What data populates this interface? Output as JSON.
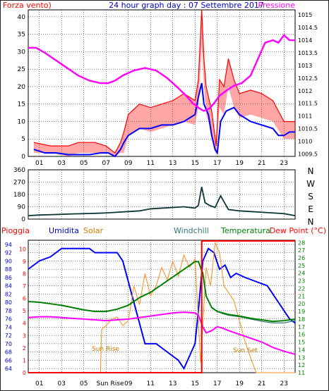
{
  "chart_data": [
    {
      "type": "line",
      "title": "24 hour graph day : 07 Settembre 2017",
      "left_label": "Forza vento)",
      "right_label": "Pressione",
      "xticks": [
        "01",
        "03",
        "05",
        "07",
        "09",
        "11",
        "13",
        "15",
        "17",
        "19",
        "21",
        "23"
      ],
      "yticks_left": [
        "0",
        "5",
        "10",
        "15",
        "20",
        "25",
        "30",
        "35",
        "40"
      ],
      "yticks_right": [
        "1009.5",
        "1010",
        "1010.5",
        "1011",
        "1011.5",
        "1012",
        "1012.5",
        "1013",
        "1013.5",
        "1014",
        "1014.5",
        "1015"
      ],
      "ylim_left": [
        0,
        42
      ],
      "ylim_right": [
        1009.4,
        1015.2
      ],
      "xlim": [
        0,
        24
      ],
      "series": [
        {
          "name": "Forza vento",
          "color": "#ff0000",
          "axis": "left",
          "x": [
            0.5,
            2,
            3.6,
            4.5,
            6,
            7,
            7.8,
            8.3,
            8.6,
            9,
            10,
            11,
            12,
            13,
            14,
            15,
            15.3,
            15.6,
            15.8,
            16,
            16.5,
            16.9,
            17.2,
            17.6,
            18,
            18.5,
            19,
            20,
            21,
            22,
            23,
            24
          ],
          "y": [
            4,
            3,
            3,
            4,
            4,
            3,
            1,
            4,
            7,
            12,
            15,
            14,
            15,
            16,
            18,
            16,
            22,
            42,
            28,
            20,
            13,
            3,
            22,
            20,
            28,
            22,
            18,
            19,
            18,
            16,
            10,
            10
          ],
          "band": [
            3,
            2,
            3,
            3,
            3,
            2,
            2,
            3,
            6,
            6,
            7,
            7,
            7,
            7,
            8,
            7,
            8,
            10,
            8,
            8,
            6,
            3,
            8,
            8,
            8,
            8,
            7,
            7,
            7,
            6,
            5,
            5
          ]
        },
        {
          "name": "Forza vento media",
          "color": "#0000ff",
          "axis": "left",
          "x": [
            0.5,
            1.5,
            2.5,
            3.6,
            4.5,
            5.5,
            6.5,
            7.2,
            7.8,
            8.3,
            8.6,
            9,
            9.5,
            10,
            11,
            12,
            13,
            14,
            14.5,
            15,
            15.3,
            15.6,
            15.8,
            16.2,
            16.5,
            16.8,
            17,
            17.3,
            17.8,
            18.5,
            19,
            20,
            21,
            22,
            22.5,
            23,
            23.5,
            24
          ],
          "y": [
            2,
            1,
            1,
            0.5,
            0.5,
            0.5,
            1,
            1,
            0,
            2,
            4,
            6,
            7,
            8,
            8,
            9,
            9,
            10,
            11,
            12,
            17,
            21,
            15,
            12,
            6,
            2,
            1,
            10,
            13,
            14,
            12,
            10,
            9,
            8,
            6,
            6,
            7,
            7
          ]
        },
        {
          "name": "Pressione",
          "color": "#ff00ff",
          "axis": "right",
          "x": [
            0,
            0.7,
            1.5,
            2.5,
            3.5,
            4.5,
            5.5,
            6.5,
            7.2,
            7.8,
            8.5,
            9.5,
            10.5,
            11.5,
            12.5,
            13.5,
            14.2,
            14.8,
            15.4,
            15.8,
            16.3,
            16.7,
            17.2,
            17.8,
            18.5,
            19.2,
            20,
            20.8,
            21.3,
            22,
            22.5,
            23,
            23.5,
            24
          ],
          "y": [
            1013.7,
            1013.7,
            1013.5,
            1013.2,
            1012.9,
            1012.6,
            1012.4,
            1012.3,
            1012.3,
            1012.4,
            1012.6,
            1012.8,
            1012.9,
            1012.8,
            1012.5,
            1012.1,
            1011.8,
            1011.5,
            1011.3,
            1011.2,
            1011.3,
            1011.5,
            1011.8,
            1012.0,
            1012.2,
            1012.3,
            1012.6,
            1013.4,
            1013.9,
            1014.0,
            1013.9,
            1014.2,
            1014.0,
            1014.0
          ]
        }
      ]
    },
    {
      "type": "line",
      "title": "",
      "yticks": [
        "0",
        "90",
        "180",
        "270",
        "360"
      ],
      "ylim": [
        0,
        360
      ],
      "compass": [
        "N",
        "W",
        "S",
        "E",
        "N"
      ],
      "series": [
        {
          "name": "Direzione vento",
          "color": "#0d3535",
          "x": [
            0,
            1,
            2,
            3,
            4,
            5,
            6,
            7,
            8,
            9,
            10,
            11,
            12,
            13,
            14,
            15,
            15.3,
            15.6,
            15.9,
            16.3,
            16.8,
            17.3,
            18,
            19,
            20,
            21,
            22,
            23,
            24
          ],
          "y": [
            25,
            30,
            32,
            35,
            38,
            40,
            42,
            45,
            50,
            55,
            60,
            75,
            80,
            85,
            90,
            80,
            100,
            235,
            120,
            100,
            85,
            170,
            70,
            60,
            55,
            50,
            45,
            40,
            25
          ]
        }
      ]
    },
    {
      "type": "line",
      "title": "",
      "labels": [
        "Pioggia",
        "Umidita",
        "Solar",
        "Windchill",
        "Temperatura",
        "Dew Point (°C)"
      ],
      "xticks": [
        "01",
        "03",
        "05",
        "07",
        "09",
        "11",
        "13",
        "15",
        "17",
        "19",
        "21",
        "23"
      ],
      "yticks_left1": [
        "64",
        "66",
        "68",
        "70",
        "72",
        "74",
        "76",
        "78",
        "80",
        "82",
        "84",
        "86",
        "88",
        "90",
        "92",
        "94"
      ],
      "yticks_left2": [
        "0",
        "1",
        "2",
        "3",
        "4",
        "5",
        "6",
        "7",
        "8",
        "9",
        "10"
      ],
      "yticks_right": [
        "11",
        "12",
        "13",
        "14",
        "15",
        "16",
        "17",
        "18",
        "19",
        "20",
        "21",
        "22",
        "23",
        "24",
        "25",
        "26",
        "27",
        "28"
      ],
      "annotations": [
        "Sun Rise",
        "Sun Set",
        "Sun Rise"
      ],
      "ylim_humidity": [
        63,
        95
      ],
      "ylim_rain": [
        0,
        10.7
      ],
      "ylim_temp": [
        11,
        28.3
      ],
      "series": [
        {
          "name": "Umidita",
          "color": "#0000ff",
          "axis": "humidity",
          "x": [
            0,
            0.5,
            1,
            2,
            3,
            4,
            5,
            5.5,
            6,
            7,
            7.5,
            8,
            8.5,
            9,
            9.5,
            10,
            10.5,
            11,
            11.5,
            12,
            12.5,
            13,
            13.5,
            14,
            14.5,
            15,
            15.3,
            15.7,
            16.2,
            16.7,
            17.2,
            17.7,
            18.2,
            18.7,
            19.5,
            20.5,
            21.5,
            22.5,
            23,
            23.5,
            24
          ],
          "y": [
            88,
            89,
            90,
            91,
            93,
            93,
            93,
            93,
            92,
            92,
            92,
            92,
            90,
            85,
            80,
            75,
            70,
            70,
            70,
            69,
            68,
            67,
            66,
            64,
            67,
            70,
            78,
            90,
            93,
            92,
            88,
            89,
            86,
            87,
            86,
            85,
            84,
            80,
            78,
            76,
            75
          ]
        },
        {
          "name": "Solar",
          "color": "#ff8c1a",
          "axis": "rain",
          "x": [
            0,
            6.5,
            6.6,
            7,
            7.5,
            8,
            8.5,
            9,
            9.5,
            10,
            10.5,
            11,
            11.5,
            12,
            12.5,
            13,
            13.5,
            14,
            14.5,
            15,
            15.5,
            16,
            16.4,
            16.8,
            17.2,
            17.6,
            18,
            18.5,
            19,
            19.5,
            20,
            20.5,
            24
          ],
          "y": [
            0,
            0,
            3.5,
            3.8,
            4.3,
            4.5,
            3.8,
            4.2,
            7,
            5.5,
            8,
            6.2,
            7,
            8.5,
            7.5,
            9,
            7.8,
            9.5,
            8.5,
            9.2,
            0.8,
            8.5,
            7,
            10.5,
            9.7,
            7,
            6.5,
            5.8,
            4.2,
            2.5,
            1.2,
            0,
            0
          ]
        },
        {
          "name": "Windchill",
          "color": "#337777",
          "axis": "temp",
          "x": [
            0,
            1,
            2,
            3,
            4,
            5,
            6,
            7,
            8,
            9,
            10,
            11,
            12,
            13,
            14,
            15,
            15.3,
            15.7,
            16,
            16.5,
            17,
            17.5,
            18,
            19,
            20,
            21,
            22,
            23,
            24
          ],
          "y": [
            20.3,
            20.2,
            20.0,
            19.8,
            19.5,
            19.2,
            19.0,
            19.0,
            19.3,
            19.8,
            20.8,
            21.5,
            22.5,
            23.5,
            24.5,
            25.5,
            25.5,
            24.0,
            21.0,
            19.5,
            19.0,
            18.7,
            18.5,
            18.3,
            18.0,
            17.7,
            17.5,
            17.5,
            17.8
          ]
        },
        {
          "name": "Temperatura",
          "color": "#008000",
          "axis": "temp",
          "x": [
            0,
            1,
            2,
            3,
            4,
            5,
            6,
            7,
            8,
            9,
            10,
            11,
            12,
            13,
            14,
            15,
            15.3,
            15.7,
            16,
            16.5,
            17,
            17.5,
            18,
            19,
            20,
            21,
            22,
            23,
            24
          ],
          "y": [
            20.3,
            20.2,
            20.0,
            19.8,
            19.5,
            19.2,
            19.0,
            19.0,
            19.3,
            19.8,
            20.8,
            21.5,
            22.5,
            23.5,
            24.5,
            25.5,
            25.5,
            24.0,
            21.0,
            19.5,
            19.0,
            18.8,
            18.6,
            18.4,
            18.1,
            17.9,
            17.7,
            17.8,
            18.0
          ]
        },
        {
          "name": "Dew Point (°C)",
          "color": "#ff00ff",
          "axis": "temp",
          "x": [
            0,
            1,
            2,
            3,
            4,
            5,
            6,
            7,
            8,
            9,
            10,
            11,
            12,
            13,
            14,
            15,
            15.3,
            15.7,
            16,
            16.5,
            17,
            17.5,
            18,
            19,
            20,
            21,
            22,
            23,
            24
          ],
          "y": [
            18.2,
            18.3,
            18.3,
            18.2,
            18.1,
            18.0,
            17.9,
            17.8,
            17.9,
            18.0,
            18.2,
            18.4,
            18.6,
            18.8,
            18.9,
            18.8,
            18.5,
            17.0,
            16.2,
            16.5,
            17.0,
            16.8,
            16.5,
            16.0,
            15.5,
            15.0,
            14.3,
            13.8,
            13.4
          ]
        },
        {
          "name": "Pioggia",
          "color": "#ff0000",
          "axis": "rain",
          "x": [
            0,
            15.6,
            15.6,
            24
          ],
          "y": [
            0,
            0,
            10.7,
            10.7
          ]
        }
      ]
    }
  ]
}
